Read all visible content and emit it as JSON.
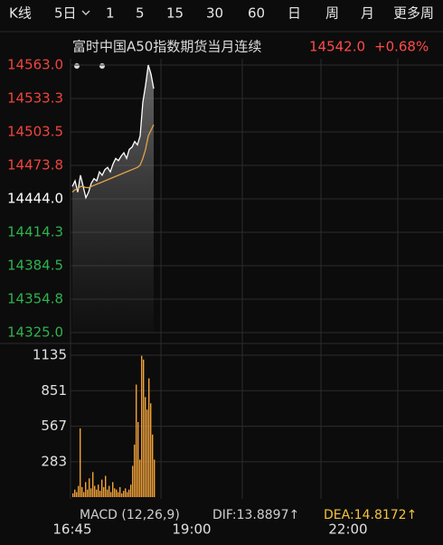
{
  "toolbar": {
    "tabs": [
      "K线",
      "5日",
      "1",
      "5",
      "15",
      "30",
      "60",
      "日",
      "周",
      "月",
      "更多周"
    ]
  },
  "header": {
    "title": "富时中国A50指数期货当月连续",
    "price": "14542.0",
    "change": "+0.68%",
    "color": "#ff4a4a"
  },
  "chart_data": [
    {
      "type": "line",
      "ylim": [
        14325.0,
        14563.0
      ],
      "yticks": [
        {
          "value": 14563.0,
          "label": "14563.0"
        },
        14533.3,
        14503.5,
        14473.8,
        {
          "value": 14444.0,
          "label": "14444.0"
        },
        14414.3,
        14384.5,
        14354.8,
        {
          "value": 14325.0,
          "label": "14325.0"
        }
      ],
      "up_color": "#f0443e",
      "down_color": "#2fb24c",
      "grid": true,
      "series": [
        {
          "color": "#ffffff",
          "values": [
            14455,
            14460,
            14450,
            14465,
            14455,
            14445,
            14450,
            14458,
            14462,
            14460,
            14468,
            14465,
            14470,
            14472,
            14468,
            14475,
            14480,
            14478,
            14482,
            14485,
            14480,
            14488,
            14490,
            14495,
            14492,
            14500,
            14530,
            14545,
            14563,
            14555,
            14542
          ]
        },
        {
          "color": "#e3a24a",
          "values": [
            14450,
            14452,
            14453,
            14455,
            14455,
            14454,
            14454,
            14455,
            14456,
            14457,
            14458,
            14459,
            14460,
            14461,
            14462,
            14463,
            14464,
            14465,
            14466,
            14467,
            14468,
            14469,
            14470,
            14471,
            14472,
            14474,
            14480,
            14488,
            14500,
            14505,
            14510
          ]
        }
      ]
    },
    {
      "type": "bar",
      "color": "#f2a23a",
      "ylim": [
        0,
        1135
      ],
      "yticks": [
        283,
        567,
        851,
        1135
      ],
      "grid": true,
      "values": [
        30,
        60,
        40,
        90,
        550,
        80,
        40,
        120,
        60,
        150,
        70,
        200,
        90,
        60,
        100,
        50,
        140,
        80,
        170,
        60,
        90,
        40,
        120,
        70,
        60,
        40,
        80,
        30,
        50,
        70,
        40,
        60,
        100,
        250,
        420,
        900,
        600,
        300,
        1130,
        1100,
        800,
        700,
        950,
        750,
        500,
        300
      ]
    }
  ],
  "macd": {
    "name": "MACD (12,26,9)",
    "dif": "DIF:13.8897↑",
    "dea": "DEA:14.8172↑",
    "dea_color": "#f5c33b"
  },
  "time_labels": [
    "16:45",
    "19:00",
    "22:00"
  ]
}
